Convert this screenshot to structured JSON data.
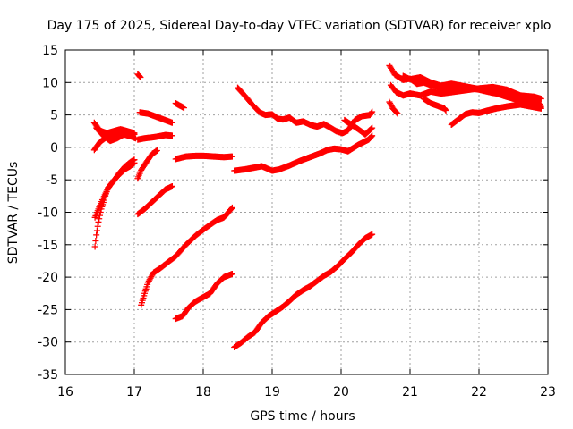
{
  "chart_data": {
    "type": "scatter",
    "title": "Day 175 of 2025, Sidereal Day-to-day VTEC variation (SDTVAR) for receiver xplo",
    "xlabel": "GPS time / hours",
    "ylabel": "SDTVAR / TECUs",
    "xlim": [
      16,
      23
    ],
    "ylim": [
      -35,
      15
    ],
    "xticks": [
      16,
      17,
      18,
      19,
      20,
      21,
      22,
      23
    ],
    "yticks": [
      -35,
      -30,
      -25,
      -20,
      -15,
      -10,
      -5,
      0,
      5,
      10,
      15
    ],
    "grid": true,
    "marker": "+",
    "color": "#ff0000",
    "series": [
      {
        "name": "s1",
        "points": [
          [
            16.43,
            -15.3
          ],
          [
            16.45,
            -13.5
          ],
          [
            16.48,
            -11.5
          ],
          [
            16.52,
            -9.5
          ],
          [
            16.57,
            -7.8
          ],
          [
            16.62,
            -6.2
          ],
          [
            16.7,
            -5.2
          ],
          [
            16.78,
            -4.0
          ],
          [
            16.86,
            -3.0
          ],
          [
            16.94,
            -2.3
          ],
          [
            17.0,
            -1.9
          ]
        ]
      },
      {
        "name": "s2",
        "points": [
          [
            16.43,
            -10.8
          ],
          [
            16.48,
            -9.5
          ],
          [
            16.55,
            -7.8
          ],
          [
            16.62,
            -6.3
          ],
          [
            16.7,
            -5.1
          ],
          [
            16.78,
            -4.2
          ],
          [
            16.86,
            -3.4
          ],
          [
            16.94,
            -2.9
          ],
          [
            17.0,
            -2.4
          ]
        ]
      },
      {
        "name": "s3",
        "points": [
          [
            16.42,
            3.8
          ],
          [
            16.5,
            2.6
          ],
          [
            16.6,
            2.2
          ],
          [
            16.7,
            2.5
          ],
          [
            16.8,
            2.8
          ],
          [
            16.9,
            2.5
          ],
          [
            17.0,
            2.2
          ]
        ]
      },
      {
        "name": "s4",
        "points": [
          [
            16.42,
            -0.4
          ],
          [
            16.5,
            0.8
          ],
          [
            16.6,
            1.6
          ],
          [
            16.7,
            2.1
          ],
          [
            16.8,
            2.5
          ],
          [
            16.9,
            2.4
          ],
          [
            17.0,
            2.0
          ]
        ]
      },
      {
        "name": "s5",
        "points": [
          [
            16.45,
            3.0
          ],
          [
            16.55,
            1.8
          ],
          [
            16.65,
            1.0
          ],
          [
            16.75,
            1.4
          ],
          [
            16.85,
            2.0
          ],
          [
            16.95,
            1.7
          ],
          [
            17.02,
            1.4
          ]
        ]
      },
      {
        "name": "s6",
        "points": [
          [
            17.05,
            11.3
          ],
          [
            17.09,
            10.8
          ]
        ]
      },
      {
        "name": "s7",
        "points": [
          [
            17.08,
            5.4
          ],
          [
            17.2,
            5.2
          ],
          [
            17.3,
            4.8
          ],
          [
            17.4,
            4.4
          ],
          [
            17.55,
            3.8
          ]
        ]
      },
      {
        "name": "s8",
        "points": [
          [
            17.05,
            1.2
          ],
          [
            17.15,
            1.4
          ],
          [
            17.3,
            1.6
          ],
          [
            17.45,
            1.9
          ],
          [
            17.55,
            1.8
          ]
        ]
      },
      {
        "name": "s9",
        "points": [
          [
            17.05,
            -4.8
          ],
          [
            17.1,
            -3.5
          ],
          [
            17.18,
            -2.2
          ],
          [
            17.26,
            -1.0
          ],
          [
            17.33,
            -0.5
          ]
        ]
      },
      {
        "name": "s10",
        "points": [
          [
            17.6,
            6.8
          ],
          [
            17.65,
            6.5
          ],
          [
            17.72,
            6.1
          ]
        ]
      },
      {
        "name": "s11",
        "points": [
          [
            17.05,
            -10.3
          ],
          [
            17.15,
            -9.5
          ],
          [
            17.25,
            -8.5
          ],
          [
            17.35,
            -7.5
          ],
          [
            17.45,
            -6.5
          ],
          [
            17.55,
            -6.0
          ]
        ]
      },
      {
        "name": "s12",
        "points": [
          [
            17.1,
            -24.3
          ],
          [
            17.15,
            -22.5
          ],
          [
            17.2,
            -20.8
          ],
          [
            17.28,
            -19.3
          ],
          [
            17.38,
            -18.6
          ],
          [
            17.5,
            -17.6
          ],
          [
            17.6,
            -16.8
          ],
          [
            17.75,
            -15.0
          ],
          [
            17.9,
            -13.5
          ],
          [
            18.05,
            -12.3
          ],
          [
            18.2,
            -11.2
          ],
          [
            18.3,
            -10.8
          ],
          [
            18.35,
            -10.2
          ],
          [
            18.42,
            -9.3
          ]
        ]
      },
      {
        "name": "s13",
        "points": [
          [
            17.6,
            -26.4
          ],
          [
            17.7,
            -26.0
          ],
          [
            17.78,
            -24.8
          ],
          [
            17.88,
            -23.8
          ],
          [
            17.98,
            -23.2
          ],
          [
            18.1,
            -22.5
          ],
          [
            18.2,
            -21.0
          ],
          [
            18.3,
            -20.0
          ],
          [
            18.42,
            -19.5
          ]
        ]
      },
      {
        "name": "s14",
        "points": [
          [
            17.6,
            -1.8
          ],
          [
            17.75,
            -1.4
          ],
          [
            17.9,
            -1.3
          ],
          [
            18.0,
            -1.3
          ],
          [
            18.15,
            -1.4
          ],
          [
            18.3,
            -1.5
          ],
          [
            18.42,
            -1.4
          ]
        ]
      },
      {
        "name": "s15",
        "points": [
          [
            18.45,
            -3.6
          ],
          [
            18.6,
            -3.4
          ],
          [
            18.75,
            -3.1
          ],
          [
            18.85,
            -2.9
          ],
          [
            19.0,
            -3.6
          ],
          [
            19.1,
            -3.4
          ],
          [
            19.25,
            -2.8
          ],
          [
            19.4,
            -2.1
          ],
          [
            19.55,
            -1.5
          ],
          [
            19.7,
            -0.9
          ],
          [
            19.8,
            -0.4
          ],
          [
            19.9,
            -0.2
          ],
          [
            20.0,
            -0.3
          ],
          [
            20.1,
            -0.6
          ],
          [
            20.25,
            0.4
          ],
          [
            20.4,
            1.2
          ],
          [
            20.45,
            1.8
          ]
        ]
      },
      {
        "name": "s16",
        "points": [
          [
            18.5,
            9.2
          ],
          [
            18.6,
            8.0
          ],
          [
            18.72,
            6.5
          ],
          [
            18.82,
            5.4
          ],
          [
            18.9,
            5.0
          ],
          [
            19.0,
            5.1
          ],
          [
            19.08,
            4.4
          ],
          [
            19.16,
            4.3
          ],
          [
            19.25,
            4.6
          ],
          [
            19.35,
            3.8
          ],
          [
            19.45,
            4.0
          ],
          [
            19.55,
            3.5
          ],
          [
            19.65,
            3.2
          ],
          [
            19.75,
            3.6
          ],
          [
            19.85,
            3.0
          ],
          [
            19.93,
            2.5
          ],
          [
            20.02,
            2.2
          ],
          [
            20.1,
            2.6
          ],
          [
            20.2,
            4.2
          ],
          [
            20.3,
            4.8
          ],
          [
            20.42,
            5.0
          ],
          [
            20.45,
            5.5
          ]
        ]
      },
      {
        "name": "s17",
        "points": [
          [
            20.05,
            4.2
          ],
          [
            20.15,
            3.5
          ],
          [
            20.25,
            2.8
          ],
          [
            20.35,
            2.0
          ],
          [
            20.45,
            3.0
          ]
        ]
      },
      {
        "name": "s18",
        "points": [
          [
            18.45,
            -30.8
          ],
          [
            18.55,
            -30.1
          ],
          [
            18.65,
            -29.2
          ],
          [
            18.75,
            -28.5
          ],
          [
            18.85,
            -27.0
          ],
          [
            18.95,
            -26.0
          ],
          [
            19.05,
            -25.3
          ],
          [
            19.15,
            -24.6
          ],
          [
            19.25,
            -23.7
          ],
          [
            19.35,
            -22.7
          ],
          [
            19.45,
            -22.0
          ],
          [
            19.55,
            -21.4
          ],
          [
            19.65,
            -20.6
          ],
          [
            19.75,
            -19.8
          ],
          [
            19.85,
            -19.2
          ],
          [
            19.95,
            -18.3
          ],
          [
            20.05,
            -17.2
          ],
          [
            20.15,
            -16.2
          ],
          [
            20.25,
            -15.0
          ],
          [
            20.35,
            -14.0
          ],
          [
            20.45,
            -13.4
          ]
        ]
      },
      {
        "name": "s19",
        "points": [
          [
            20.7,
            12.6
          ],
          [
            20.78,
            11.2
          ],
          [
            20.9,
            10.4
          ],
          [
            21.0,
            10.6
          ],
          [
            21.1,
            9.8
          ],
          [
            21.2,
            10.0
          ],
          [
            21.3,
            9.6
          ],
          [
            21.45,
            9.2
          ],
          [
            21.6,
            8.9
          ],
          [
            21.8,
            9.2
          ],
          [
            22.0,
            8.9
          ],
          [
            22.2,
            8.4
          ],
          [
            22.4,
            8.2
          ],
          [
            22.6,
            8.0
          ],
          [
            22.8,
            7.8
          ],
          [
            22.9,
            7.5
          ]
        ]
      },
      {
        "name": "s20",
        "points": [
          [
            20.72,
            9.6
          ],
          [
            20.8,
            8.5
          ],
          [
            20.9,
            8.0
          ],
          [
            21.0,
            8.3
          ],
          [
            21.15,
            8.0
          ],
          [
            21.3,
            8.6
          ],
          [
            21.45,
            8.3
          ],
          [
            21.6,
            8.5
          ],
          [
            21.8,
            8.8
          ],
          [
            22.0,
            9.1
          ],
          [
            22.2,
            9.3
          ],
          [
            22.4,
            8.9
          ],
          [
            22.6,
            8.0
          ],
          [
            22.8,
            7.2
          ],
          [
            22.9,
            6.5
          ]
        ]
      },
      {
        "name": "s21",
        "points": [
          [
            20.7,
            7.0
          ],
          [
            20.75,
            6.0
          ],
          [
            20.82,
            5.2
          ]
        ]
      },
      {
        "name": "s22",
        "points": [
          [
            21.2,
            7.5
          ],
          [
            21.3,
            6.8
          ],
          [
            21.4,
            6.4
          ],
          [
            21.5,
            6.0
          ],
          [
            21.52,
            5.7
          ]
        ]
      },
      {
        "name": "s23",
        "points": [
          [
            21.6,
            3.5
          ],
          [
            21.7,
            4.3
          ],
          [
            21.8,
            5.1
          ],
          [
            21.9,
            5.4
          ],
          [
            22.0,
            5.3
          ],
          [
            22.1,
            5.6
          ],
          [
            22.25,
            6.0
          ],
          [
            22.4,
            6.3
          ],
          [
            22.6,
            6.6
          ],
          [
            22.8,
            6.2
          ],
          [
            22.9,
            6.0
          ]
        ]
      },
      {
        "name": "s24",
        "points": [
          [
            20.9,
            11.0
          ],
          [
            21.0,
            10.5
          ],
          [
            21.15,
            10.8
          ],
          [
            21.3,
            10.0
          ],
          [
            21.45,
            9.5
          ],
          [
            21.6,
            9.8
          ],
          [
            21.8,
            9.4
          ],
          [
            22.0,
            9.0
          ],
          [
            22.2,
            8.5
          ],
          [
            22.4,
            7.8
          ],
          [
            22.6,
            7.2
          ],
          [
            22.8,
            6.6
          ],
          [
            22.9,
            6.2
          ]
        ]
      }
    ]
  }
}
